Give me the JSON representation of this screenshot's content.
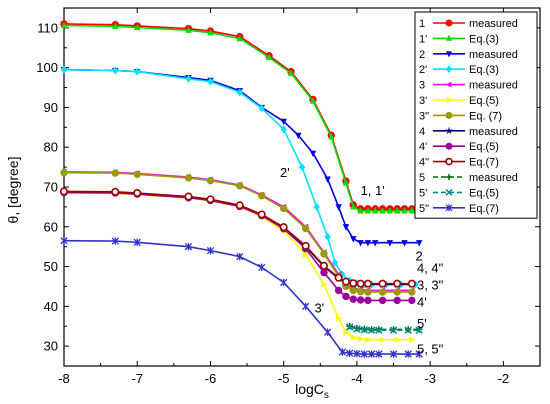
{
  "chart_data": {
    "type": "line",
    "title": "",
    "xlabel": "logC",
    "xlabel_sub": "s",
    "ylabel": "θ, [degree]",
    "xlim": [
      -8,
      -1.5
    ],
    "ylim": [
      25,
      115
    ],
    "xticks": [
      -8,
      -7,
      -6,
      -5,
      -4,
      -3,
      -2
    ],
    "yticks": [
      30,
      40,
      50,
      60,
      70,
      80,
      90,
      100,
      110
    ],
    "grid": false,
    "legend_position": "top-right",
    "series": [
      {
        "name": "1",
        "label_suffix": "measured",
        "color": "#ff0000",
        "marker": "circle",
        "linestyle": "solid",
        "x": [
          -8,
          -7.3,
          -7,
          -6.3,
          -6,
          -5.6,
          -5.2,
          -4.9,
          -4.6,
          -4.35,
          -4.15,
          -4.05,
          -3.95,
          -3.85,
          -3.75,
          -3.65,
          -3.55,
          -3.45,
          -3.35,
          -3.25,
          -3.15
        ],
        "y": [
          111,
          110.8,
          110.5,
          109.8,
          109.2,
          107.8,
          103,
          99,
          92,
          83,
          71.5,
          65.5,
          64.5,
          64.5,
          64.5,
          64.5,
          64.5,
          64.5,
          64.5,
          64.5,
          64.5
        ]
      },
      {
        "name": "1'",
        "label_suffix": "Eq.(3)",
        "color": "#00dd00",
        "marker": "triangle-up",
        "linestyle": "solid",
        "x": [
          -8,
          -7.3,
          -7,
          -6.3,
          -6,
          -5.6,
          -5.2,
          -4.9,
          -4.6,
          -4.35,
          -4.15,
          -4.05,
          -3.95,
          -3.85,
          -3.75,
          -3.65,
          -3.55,
          -3.45,
          -3.35,
          -3.25,
          -3.15
        ],
        "y": [
          110.6,
          110.4,
          110.1,
          109.4,
          108.8,
          107.3,
          102.6,
          98.6,
          91.6,
          82.6,
          71,
          65,
          64,
          64,
          64,
          64,
          64,
          64,
          64,
          64,
          64
        ]
      },
      {
        "name": "2",
        "label_suffix": "measured",
        "color": "#0000dd",
        "marker": "triangle-down",
        "linestyle": "solid",
        "x": [
          -8,
          -7.3,
          -7,
          -6.3,
          -6,
          -5.6,
          -5.3,
          -5,
          -4.8,
          -4.6,
          -4.4,
          -4.25,
          -4.15,
          -4.05,
          -3.95,
          -3.85,
          -3.75,
          -3.55,
          -3.35,
          -3.15
        ],
        "y": [
          99.5,
          99.3,
          99,
          97.5,
          96.8,
          94.2,
          90,
          86.5,
          83,
          78.5,
          72,
          65,
          60,
          57,
          56,
          56,
          56,
          56,
          56,
          56
        ]
      },
      {
        "name": "2'",
        "label_suffix": "Eq.(3)",
        "color": "#00e0ff",
        "marker": "diamond",
        "linestyle": "solid",
        "x": [
          -8,
          -7.3,
          -7,
          -6.3,
          -6,
          -5.6,
          -5.3,
          -5,
          -4.75,
          -4.55,
          -4.4,
          -4.3,
          -4.2,
          -4.1,
          -4,
          -3.9,
          -3.8,
          -3.6,
          -3.4,
          -3.2
        ],
        "y": [
          99.5,
          99.3,
          99,
          97.2,
          96.5,
          93.8,
          89.8,
          84.5,
          75,
          65,
          57.5,
          51,
          48,
          46.5,
          45.8,
          45.5,
          45.5,
          45.5,
          45.5,
          45.5
        ]
      },
      {
        "name": "3",
        "label_suffix": "measured",
        "color": "#ff00ff",
        "marker": "triangle-left",
        "linestyle": "solid",
        "x": [
          -8,
          -7.3,
          -7,
          -6.3,
          -6,
          -5.6,
          -5.3,
          -5,
          -4.7,
          -4.45,
          -4.25,
          -4.15,
          -4.05,
          -3.95,
          -3.85,
          -3.65,
          -3.45,
          -3.25
        ],
        "y": [
          73.8,
          73.7,
          73.4,
          72.5,
          71.8,
          70.5,
          68,
          65,
          60,
          53.5,
          48,
          45.5,
          44.5,
          44.2,
          44,
          44,
          44,
          44
        ]
      },
      {
        "name": "3'",
        "label_suffix": "Eq.(5)",
        "color": "#ffff00",
        "marker": "triangle-right",
        "linestyle": "solid",
        "x": [
          -8,
          -7.3,
          -7,
          -6.3,
          -6,
          -5.6,
          -5.3,
          -5,
          -4.7,
          -4.45,
          -4.25,
          -4.15,
          -4.05,
          -3.95,
          -3.85,
          -3.65,
          -3.45,
          -3.25
        ],
        "y": [
          68.5,
          68.4,
          68.1,
          67.2,
          66.5,
          65,
          62.5,
          59,
          53,
          45.5,
          37,
          33.5,
          32.2,
          31.8,
          31.6,
          31.6,
          31.6,
          31.6
        ]
      },
      {
        "name": "3\"",
        "label_suffix": "Eq. (7)",
        "color": "#999900",
        "marker": "circle",
        "linestyle": "solid",
        "x": [
          -8,
          -7.3,
          -7,
          -6.3,
          -6,
          -5.6,
          -5.3,
          -5,
          -4.7,
          -4.45,
          -4.25,
          -4.15,
          -4.05,
          -3.95,
          -3.85,
          -3.65,
          -3.45,
          -3.25
        ],
        "y": [
          73.6,
          73.5,
          73.2,
          72.3,
          71.6,
          70.3,
          67.8,
          64.6,
          59.6,
          53.2,
          47.5,
          45,
          44,
          43.7,
          43.6,
          43.6,
          43.6,
          43.6
        ]
      },
      {
        "name": "4",
        "label_suffix": "measured",
        "color": "#000080",
        "marker": "star",
        "linestyle": "solid",
        "x": [
          -8,
          -7.3,
          -7,
          -6.3,
          -6,
          -5.6,
          -5.3,
          -5,
          -4.7,
          -4.45,
          -4.25,
          -4.15,
          -4.05,
          -3.95,
          -3.85,
          -3.65,
          -3.45,
          -3.25
        ],
        "y": [
          68.8,
          68.7,
          68.4,
          67.5,
          66.8,
          65.3,
          63,
          59.8,
          55,
          50,
          47,
          46,
          45.6,
          45.5,
          45.5,
          45.5,
          45.5,
          45.5
        ]
      },
      {
        "name": "4'",
        "label_suffix": "Eq.(5)",
        "color": "#990099",
        "marker": "circle",
        "linestyle": "solid",
        "x": [
          -8,
          -7.3,
          -7,
          -6.3,
          -6,
          -5.6,
          -5.3,
          -5,
          -4.7,
          -4.45,
          -4.25,
          -4.15,
          -4.05,
          -3.95,
          -3.85,
          -3.65,
          -3.45,
          -3.25
        ],
        "y": [
          68.6,
          68.5,
          68.2,
          67.3,
          66.6,
          65.1,
          62.8,
          59.5,
          54.5,
          48.5,
          44,
          42.5,
          41.8,
          41.6,
          41.5,
          41.5,
          41.5,
          41.5
        ]
      },
      {
        "name": "4\"",
        "label_suffix": "Eq.(7)",
        "color": "#990000",
        "marker": "circle-open",
        "linestyle": "solid",
        "x": [
          -8,
          -7.3,
          -7,
          -6.3,
          -6,
          -5.6,
          -5.3,
          -5,
          -4.7,
          -4.45,
          -4.25,
          -4.15,
          -4.05,
          -3.95,
          -3.85,
          -3.65,
          -3.45,
          -3.25
        ],
        "y": [
          68.9,
          68.8,
          68.5,
          67.6,
          66.9,
          65.4,
          63.1,
          59.9,
          55.2,
          50.2,
          47.2,
          46.2,
          45.8,
          45.7,
          45.7,
          45.7,
          45.7,
          45.7
        ]
      },
      {
        "name": "5",
        "label_suffix": "measured",
        "color": "#006600",
        "marker": "plus",
        "linestyle": "dashed",
        "x": [
          -4.1,
          -4,
          -3.9,
          -3.8,
          -3.7,
          -3.5,
          -3.3,
          -3.15
        ],
        "y": [
          35,
          34.5,
          34.3,
          34.2,
          34.2,
          34.2,
          34.2,
          34.2
        ]
      },
      {
        "name": "5'",
        "label_suffix": "Eq.(5)",
        "color": "#008888",
        "marker": "x",
        "linestyle": "dashed",
        "x": [
          -4.1,
          -4,
          -3.9,
          -3.8,
          -3.7,
          -3.5,
          -3.3,
          -3.15
        ],
        "y": [
          34.8,
          34.3,
          34.1,
          34,
          34,
          34,
          34,
          34
        ]
      },
      {
        "name": "5\"",
        "label_suffix": "Eq.(7)",
        "color": "#3333cc",
        "marker": "asterisk",
        "linestyle": "solid",
        "x": [
          -8,
          -7.3,
          -7,
          -6.3,
          -6,
          -5.6,
          -5.3,
          -5,
          -4.7,
          -4.4,
          -4.2,
          -4.1,
          -4,
          -3.9,
          -3.8,
          -3.7,
          -3.5,
          -3.3,
          -3.15
        ],
        "y": [
          56.5,
          56.4,
          56.1,
          55,
          54,
          52.5,
          49.8,
          46,
          40,
          33.5,
          28.5,
          28.2,
          28.1,
          28,
          28,
          28,
          28,
          28,
          28
        ]
      }
    ],
    "annotations": [
      {
        "text": "1, 1'",
        "x": -3.95,
        "y": 68
      },
      {
        "text": "2",
        "x": -3.2,
        "y": 51.5
      },
      {
        "text": "2'",
        "x": -5.05,
        "y": 72.5
      },
      {
        "text": "4, 4\"",
        "x": -3.18,
        "y": 48.5
      },
      {
        "text": "3, 3\"",
        "x": -3.18,
        "y": 44.2
      },
      {
        "text": "4'",
        "x": -3.18,
        "y": 40
      },
      {
        "text": "3'",
        "x": -4.58,
        "y": 38.5
      },
      {
        "text": "5'",
        "x": -3.18,
        "y": 34.5
      },
      {
        "text": "5, 5\"",
        "x": -3.18,
        "y": 28.2
      }
    ]
  }
}
